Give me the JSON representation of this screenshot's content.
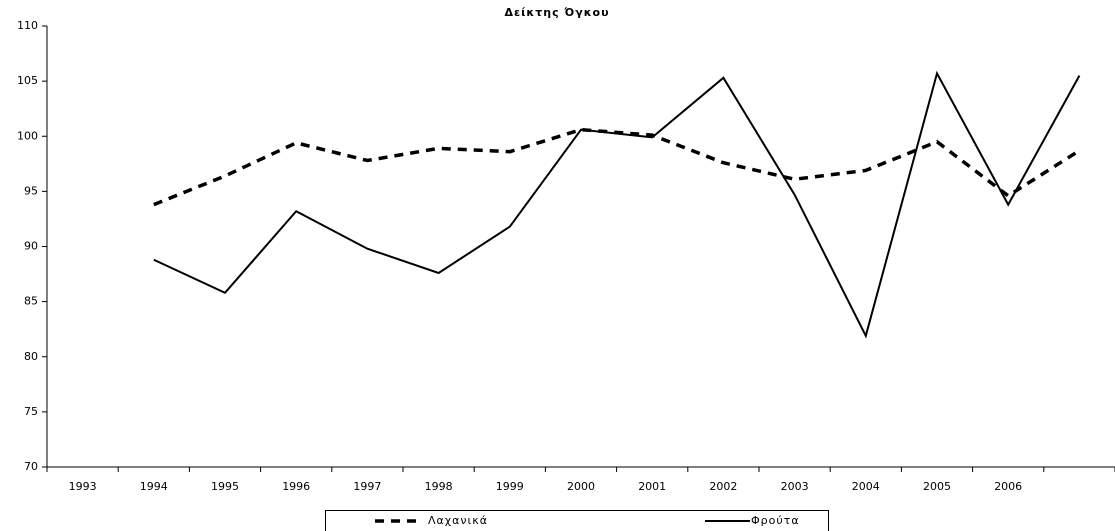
{
  "chart_data": {
    "type": "line",
    "title": "Δείκτης Όγκου",
    "categories": [
      "1993",
      "1994",
      "1995",
      "1996",
      "1997",
      "1998",
      "1999",
      "2000",
      "2001",
      "2002",
      "2003",
      "2004",
      "2005",
      "2006",
      null
    ],
    "series": [
      {
        "name": "Λαχανικά",
        "color": "#000000",
        "dash": true,
        "values": [
          null,
          93.8,
          96.4,
          99.4,
          97.8,
          98.9,
          98.6,
          100.6,
          100.1,
          97.6,
          96.1,
          96.9,
          99.5,
          94.6,
          98.7
        ]
      },
      {
        "name": "Φρούτα",
        "color": "#000000",
        "dash": false,
        "values": [
          null,
          88.8,
          85.8,
          93.2,
          89.8,
          87.6,
          91.8,
          100.6,
          99.9,
          105.3,
          94.7,
          81.9,
          105.7,
          93.8,
          105.5
        ]
      }
    ],
    "ylim": [
      70,
      110
    ],
    "yticks": [
      70,
      75,
      80,
      85,
      90,
      95,
      100,
      105,
      110
    ],
    "grid": false,
    "legend": "bottom"
  }
}
